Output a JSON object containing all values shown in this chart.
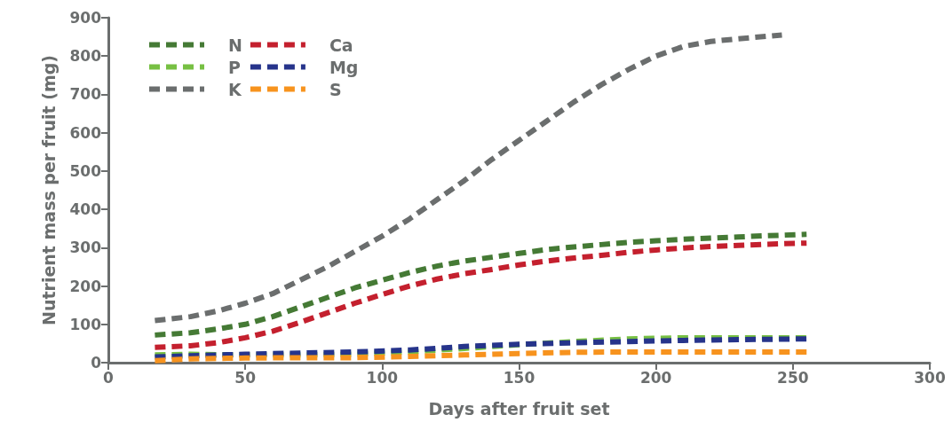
{
  "chart_data": {
    "type": "line",
    "xlabel": "Days after fruit set",
    "ylabel": "Nutrient mass per fruit (mg)",
    "xlim": [
      0,
      300
    ],
    "xticks": [
      0,
      50,
      100,
      150,
      200,
      250,
      300
    ],
    "ylim": [
      0,
      900
    ],
    "yticks": [
      0,
      100,
      200,
      300,
      400,
      500,
      600,
      700,
      800,
      900
    ],
    "grid": false,
    "legend": "top left",
    "marker": "none",
    "line_style": "dashed",
    "series": [
      {
        "name": "N",
        "color": "#457a35",
        "x": [
          17,
          30,
          40,
          50,
          60,
          70,
          80,
          90,
          100,
          110,
          120,
          130,
          140,
          150,
          160,
          170,
          180,
          190,
          200,
          210,
          220,
          230,
          240,
          255
        ],
        "values": [
          72,
          78,
          88,
          100,
          120,
          145,
          170,
          195,
          215,
          235,
          252,
          265,
          275,
          285,
          295,
          302,
          308,
          314,
          318,
          322,
          325,
          328,
          331,
          335
        ]
      },
      {
        "name": "P",
        "color": "#77c043",
        "x": [
          17,
          30,
          50,
          70,
          90,
          110,
          130,
          150,
          170,
          190,
          210,
          230,
          255
        ],
        "values": [
          20,
          22,
          20,
          20,
          22,
          28,
          37,
          47,
          55,
          62,
          65,
          65,
          65
        ]
      },
      {
        "name": "K",
        "color": "#6b6e6e",
        "x": [
          17,
          30,
          40,
          50,
          60,
          70,
          80,
          90,
          100,
          110,
          120,
          130,
          140,
          150,
          160,
          170,
          180,
          190,
          200,
          210,
          220,
          230,
          246
        ],
        "values": [
          110,
          120,
          135,
          155,
          180,
          215,
          250,
          290,
          330,
          375,
          425,
          475,
          530,
          580,
          630,
          680,
          725,
          765,
          800,
          825,
          838,
          845,
          855
        ]
      },
      {
        "name": "Ca",
        "color": "#c4202e",
        "x": [
          17,
          30,
          40,
          50,
          60,
          70,
          80,
          90,
          100,
          110,
          120,
          130,
          140,
          150,
          160,
          170,
          180,
          190,
          200,
          210,
          220,
          230,
          240,
          255
        ],
        "values": [
          40,
          44,
          52,
          65,
          82,
          105,
          130,
          155,
          178,
          200,
          218,
          232,
          243,
          255,
          265,
          273,
          280,
          288,
          294,
          299,
          303,
          306,
          309,
          312
        ]
      },
      {
        "name": "Mg",
        "color": "#26348b",
        "x": [
          17,
          30,
          50,
          70,
          90,
          110,
          130,
          150,
          170,
          190,
          210,
          230,
          255
        ],
        "values": [
          15,
          18,
          22,
          25,
          28,
          33,
          42,
          48,
          52,
          55,
          58,
          60,
          62
        ]
      },
      {
        "name": "S",
        "color": "#f7931e",
        "x": [
          17,
          30,
          50,
          70,
          90,
          110,
          130,
          150,
          170,
          190,
          210,
          230,
          255
        ],
        "values": [
          5,
          10,
          12,
          13,
          13,
          16,
          20,
          24,
          27,
          28,
          28,
          28,
          28
        ]
      }
    ]
  }
}
